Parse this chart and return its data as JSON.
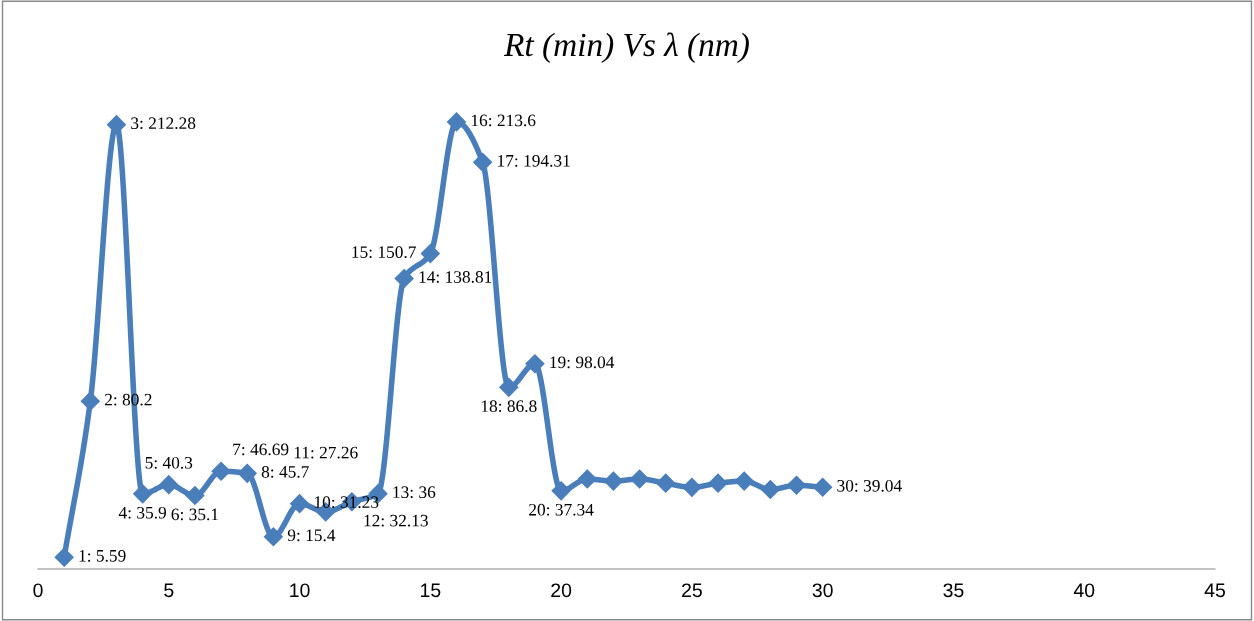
{
  "chart_data": {
    "type": "line",
    "title": "Rt (min) Vs λ (nm)",
    "x": [
      1,
      2,
      3,
      4,
      5,
      6,
      7,
      8,
      9,
      10,
      11,
      12,
      13,
      14,
      15,
      16,
      17,
      18,
      19,
      20,
      21,
      22,
      23,
      24,
      25,
      26,
      27,
      28,
      29,
      30
    ],
    "series": [
      {
        "color": "#4a7ebb",
        "values": [
          5.59,
          80.2,
          212.28,
          35.9,
          40.3,
          35.1,
          46.69,
          45.7,
          15.4,
          31.23,
          27.26,
          32.13,
          36,
          138.81,
          150.7,
          213.6,
          194.31,
          86.8,
          98.04,
          37.34,
          43,
          42,
          43,
          41,
          39,
          41,
          42,
          38,
          40,
          39.04
        ],
        "value_labels": [
          "1: 5.59",
          "2: 80.2",
          "3: 212.28",
          "4: 35.9",
          "5: 40.3",
          "6: 35.1",
          "7: 46.69",
          "8: 45.7",
          "9: 15.4",
          "10: 31.23",
          "11: 27.26",
          "12: 32.13",
          "13: 36",
          "14: 138.81",
          "15: 150.7",
          "16: 213.6",
          "17: 194.31",
          "18: 86.8",
          "19: 98.04",
          "20: 37.34",
          null,
          null,
          null,
          null,
          null,
          null,
          null,
          null,
          null,
          "30: 39.04"
        ]
      }
    ],
    "xlim": [
      0,
      45
    ],
    "xticks": [
      0,
      5,
      10,
      15,
      20,
      25,
      30,
      35,
      40,
      45
    ],
    "tick_labels": "x",
    "marker": "diamond",
    "line_style": "solid"
  }
}
